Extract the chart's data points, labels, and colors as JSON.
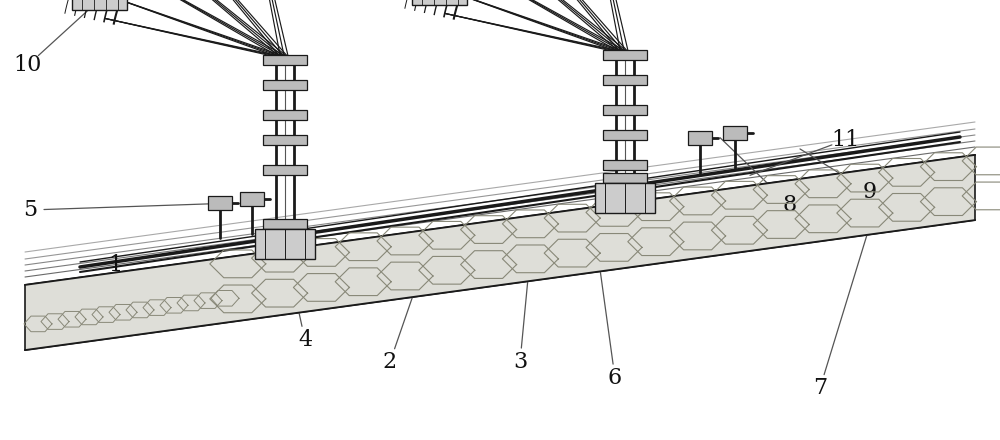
{
  "bg_color": "#ffffff",
  "dc": "#1a1a1a",
  "gc": "#555555",
  "lc": "#888888",
  "figsize": [
    10.0,
    4.4
  ],
  "dpi": 100,
  "label_fontsize": 16,
  "annotation_color": "#111111",
  "slab_face": "#deded8",
  "slab_mid": "#c8c8c0",
  "hex_color": "#888878",
  "hatch_color": "#999988"
}
